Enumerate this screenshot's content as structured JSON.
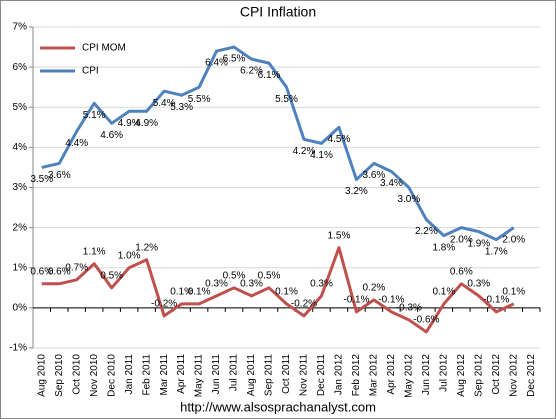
{
  "chart_data": {
    "type": "line",
    "title": "CPI Inflation",
    "footer": "http://www.alsosprachanalyst.com",
    "categories": [
      "Aug 2010",
      "Sep 2010",
      "Oct 2010",
      "Nov 2010",
      "Dec 2010",
      "Jan 2011",
      "Feb 2011",
      "Mar 2011",
      "Apr 2011",
      "May 2011",
      "Jun 2011",
      "Jul 2011",
      "Aug 2011",
      "Sep 2011",
      "Oct 2011",
      "Nov 2011",
      "Dec 2011",
      "Jan 2012",
      "Feb 2012",
      "Mar 2012",
      "Apr 2012",
      "May 2012",
      "Jun 2012",
      "Jul 2012",
      "Aug 2012",
      "Sep 2012",
      "Oct 2012",
      "Nov 2012",
      "Dec 2012"
    ],
    "series": [
      {
        "name": "CPI MOM",
        "color": "#c0504d",
        "values": [
          0.6,
          0.6,
          0.7,
          1.1,
          0.5,
          1.0,
          1.2,
          -0.2,
          0.1,
          0.1,
          0.3,
          0.5,
          0.3,
          0.5,
          0.1,
          -0.2,
          0.3,
          1.5,
          -0.1,
          0.2,
          -0.1,
          -0.3,
          -0.6,
          0.1,
          0.6,
          0.3,
          -0.1,
          0.1,
          null
        ],
        "value_labels": [
          "0.6%",
          "0.6%",
          "0.7%",
          "1.1%",
          "0.5%",
          "1.0%",
          "1.2%",
          "-0.2%",
          "0.1%",
          "0.1%",
          "0.3%",
          "0.5%",
          "0.3%",
          "0.5%",
          "0.1%",
          "-0.2%",
          "0.3%",
          "1.5%",
          "-0.1%",
          "0.2%",
          "-0.1%",
          "-0.3%",
          "-0.6%",
          "0.1%",
          "0.6%",
          "0.3%",
          "-0.1%",
          "0.1%",
          null
        ]
      },
      {
        "name": "CPI",
        "color": "#4f81bd",
        "values": [
          3.5,
          3.6,
          4.4,
          5.1,
          4.6,
          4.9,
          4.9,
          5.4,
          5.3,
          5.5,
          6.4,
          6.5,
          6.2,
          6.1,
          5.5,
          4.2,
          4.1,
          4.5,
          3.2,
          3.6,
          3.4,
          3.0,
          2.2,
          1.8,
          2.0,
          1.9,
          1.7,
          2.0,
          null
        ],
        "value_labels": [
          "3.5%",
          "3.6%",
          "4.4%",
          "5.1%",
          "4.6%",
          "4.9%",
          "4.9%",
          "5.4%",
          "5.3%",
          "5.5%",
          "6.4%",
          "6.5%",
          "6.2%",
          "6.1%",
          "5.5%",
          "4.2%",
          "4.1%",
          "4.5%",
          "3.2%",
          "3.6%",
          "3.4%",
          "3.0%",
          "2.2%",
          "1.8%",
          "2.0%",
          "1.9%",
          "1.7%",
          "2.0%",
          null
        ]
      }
    ],
    "ylim": [
      -1,
      7
    ],
    "yticks": [
      {
        "value": -1,
        "label": "-1%"
      },
      {
        "value": 0,
        "label": "0%"
      },
      {
        "value": 1,
        "label": "1%"
      },
      {
        "value": 2,
        "label": "2%"
      },
      {
        "value": 3,
        "label": "3%"
      },
      {
        "value": 4,
        "label": "4%"
      },
      {
        "value": 5,
        "label": "5%"
      },
      {
        "value": 6,
        "label": "6%"
      },
      {
        "value": 7,
        "label": "7%"
      }
    ],
    "grid": true,
    "legend": "upper left"
  }
}
